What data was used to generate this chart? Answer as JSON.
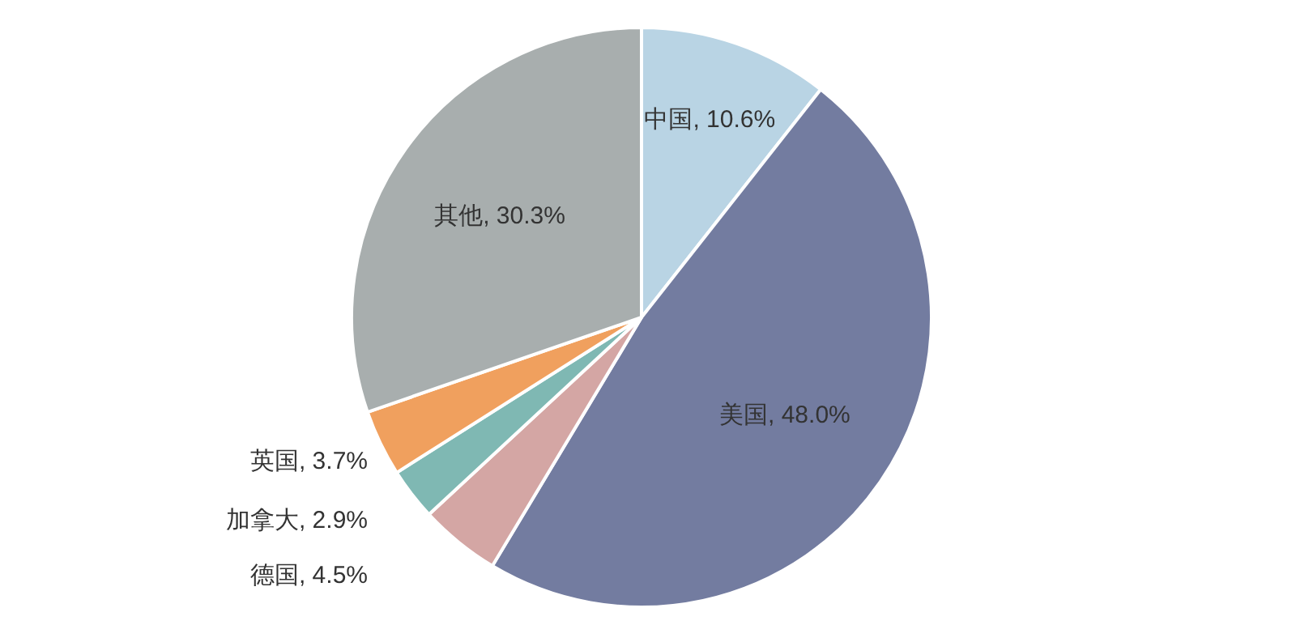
{
  "chart_data": {
    "type": "pie",
    "categories": [
      "中国",
      "美国",
      "德国",
      "加拿大",
      "英国",
      "其他"
    ],
    "values": [
      10.6,
      48.0,
      4.5,
      2.9,
      3.7,
      30.3
    ],
    "value_labels": [
      "10.6%",
      "48.0%",
      "4.5%",
      "2.9%",
      "3.7%",
      "30.3%"
    ],
    "colors": [
      "#b9d4e4",
      "#737ca0",
      "#d4a6a4",
      "#7fb8b3",
      "#f0a05e",
      "#a8aeae"
    ],
    "legend": false
  }
}
